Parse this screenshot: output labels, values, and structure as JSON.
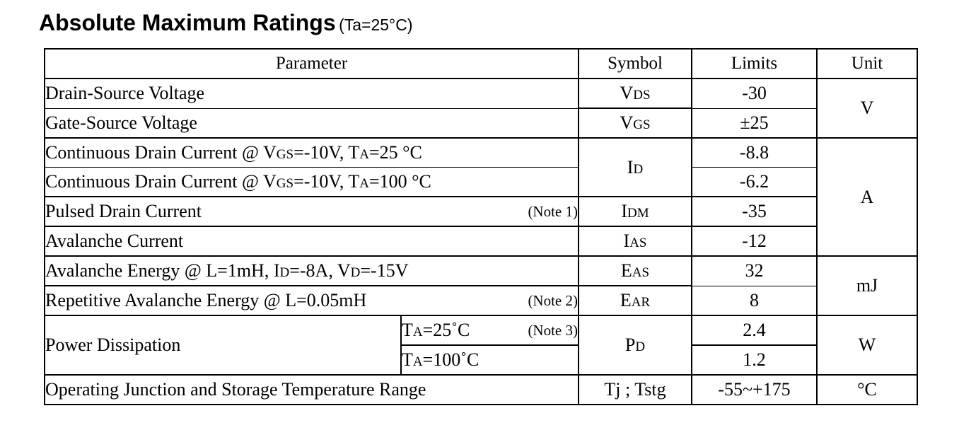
{
  "header": {
    "title": "Absolute Maximum Ratings",
    "condition": "(Ta=25°C)"
  },
  "table": {
    "columns": [
      "Parameter",
      "Symbol",
      "Limits",
      "Unit"
    ],
    "rows": [
      {
        "param": "Drain-Source Voltage",
        "sym": "V",
        "sym_sub": "DS",
        "limit": "-30"
      },
      {
        "param": "Gate-Source Voltage",
        "sym": "V",
        "sym_sub": "GS",
        "limit": "±25"
      },
      {
        "param_a": "Continuous Drain Current @ V",
        "param_sub1": "GS",
        "param_b": "=-10V,  T",
        "param_sub2": "A",
        "param_c": "=25 °C",
        "sym": "I",
        "sym_sub": "D",
        "limit": "-8.8"
      },
      {
        "param_a": "Continuous Drain Current @ V",
        "param_sub1": "GS",
        "param_b": "=-10V, T",
        "param_sub2": "A",
        "param_c": "=100 °C",
        "limit": "-6.2"
      },
      {
        "param": "Pulsed Drain Current",
        "note": "(Note 1)",
        "sym": "I",
        "sym_sub": "DM",
        "limit": "-35"
      },
      {
        "param": "Avalanche Current",
        "sym": "I",
        "sym_sub": "AS",
        "limit": "-12"
      },
      {
        "param_a": "Avalanche Energy @ L=1mH, I",
        "param_sub1": "D",
        "param_b": "=-8A, V",
        "param_sub2": "D",
        "param_c": "=-15V",
        "sym": "E",
        "sym_sub": "AS",
        "limit": "32"
      },
      {
        "param": "Repetitive Avalanche Energy @ L=0.05mH",
        "note": "(Note 2)",
        "sym": "E",
        "sym_sub": "AR",
        "limit": "8"
      },
      {
        "param": "Power Dissipation",
        "cond1_a": "T",
        "cond1_sub": "A",
        "cond1_b": "=25˚C",
        "note": "(Note 3)",
        "cond2_a": "T",
        "cond2_sub": "A",
        "cond2_b": "=100˚C",
        "sym": "P",
        "sym_sub": "D",
        "limit1": "2.4",
        "limit2": "1.2"
      },
      {
        "param": "Operating Junction and Storage Temperature Range",
        "sym": "Tj ; Tstg",
        "limit": "-55~+175"
      }
    ],
    "units": [
      "V",
      "A",
      "mJ",
      "W",
      "°C"
    ]
  }
}
